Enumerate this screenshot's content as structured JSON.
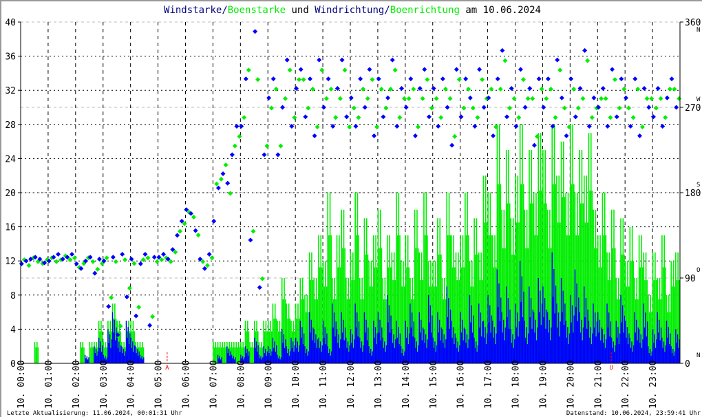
{
  "title": {
    "part1": "Windstarke",
    "sep1": "/",
    "part2": "Boenstarke",
    "mid": " und ",
    "part3": "Windrichtung",
    "sep2": "/",
    "part4": "Boenrichtung",
    "end": " am 10.06.2024"
  },
  "footer": {
    "left": "Letzte Aktualisierung: 11.06.2024, 00:01:31 Uhr",
    "right": "Datenstand: 10.06.2024, 23:59:41 Uhr"
  },
  "colors": {
    "wind": "#0000ff",
    "gust": "#00ee00",
    "title_dark": "#000080",
    "marker": "#ff0000",
    "grid_speed": "#000000",
    "grid_dir": "#bbbbbb"
  },
  "chart_data": {
    "type": "line+scatter",
    "title": "Windstarke/Boenstarke und Windrichtung/Boenrichtung am 10.06.2024",
    "x_tick_labels": [
      "10. 00:00",
      "10. 01:00",
      "10. 02:00",
      "10. 03:00",
      "10. 04:00",
      "10. 05:00",
      "10. 06:00",
      "10. 07:00",
      "10. 08:00",
      "10. 09:00",
      "10. 10:00",
      "10. 11:00",
      "10. 12:00",
      "10. 13:00",
      "10. 14:00",
      "10. 15:00",
      "10. 16:00",
      "10. 17:00",
      "10. 18:00",
      "10. 19:00",
      "10. 20:00",
      "10. 21:00",
      "10. 22:00",
      "10. 23:00"
    ],
    "xlim": [
      "10.06.2024 00:00",
      "11.06.2024 00:00"
    ],
    "y_left": {
      "ticks": [
        0,
        4,
        8,
        12,
        16,
        20,
        24,
        28,
        32,
        36,
        40
      ],
      "ylim": [
        0,
        40
      ]
    },
    "y_right": {
      "ticks": [
        0,
        90,
        180,
        270,
        360
      ],
      "ylim": [
        0,
        360
      ],
      "compass": [
        {
          "deg": 0,
          "label": "N"
        },
        {
          "deg": 90,
          "label": "O"
        },
        {
          "deg": 180,
          "label": "S"
        },
        {
          "deg": 270,
          "label": "W"
        },
        {
          "deg": 360,
          "label": "N"
        }
      ]
    },
    "grid": true,
    "markers": [
      {
        "time": "05:20",
        "label": "A"
      },
      {
        "time": "21:30",
        "label": "U"
      }
    ],
    "sample_interval": "10 min",
    "series": [
      {
        "name": "Windstarke",
        "kind": "line",
        "axis": "left",
        "values": [
          0,
          0,
          0,
          0,
          0,
          0,
          0,
          0,
          0,
          0,
          0,
          0,
          0,
          0,
          1,
          0,
          2,
          3,
          1,
          4,
          6,
          3,
          2,
          5,
          3,
          2,
          1,
          0,
          0,
          0,
          0,
          0,
          0,
          0,
          0,
          0,
          0,
          0,
          0,
          0,
          0,
          0,
          0,
          1,
          0,
          2,
          1,
          0,
          1,
          2,
          0,
          3,
          1,
          2,
          2,
          3,
          1,
          4,
          2,
          3,
          3,
          5,
          2,
          6,
          4,
          3,
          5,
          2,
          7,
          4,
          6,
          3,
          4,
          7,
          3,
          6,
          2,
          5,
          6,
          3,
          8,
          4,
          5,
          2,
          5,
          7,
          3,
          6,
          4,
          8,
          3,
          6,
          4,
          9,
          5,
          3,
          6,
          4,
          8,
          3,
          7,
          5,
          8,
          5,
          11,
          6,
          9,
          4,
          7,
          12,
          5,
          9,
          6,
          10,
          9,
          6,
          13,
          7,
          10,
          5,
          8,
          11,
          6,
          9,
          5,
          7,
          6,
          4,
          7,
          3,
          5,
          8,
          5,
          3,
          6,
          4,
          7,
          2,
          4,
          6,
          3,
          5,
          2,
          4
        ]
      },
      {
        "name": "Boenstarke",
        "kind": "line",
        "axis": "left",
        "values": [
          0,
          0,
          0,
          2.5,
          0,
          0,
          0,
          0,
          0,
          0,
          0,
          0,
          0,
          2.5,
          0,
          2.5,
          2.5,
          5,
          2.5,
          5,
          7,
          5,
          2.5,
          5,
          5,
          2.5,
          2.5,
          0,
          0,
          0,
          0,
          0,
          0,
          0,
          0,
          0,
          0,
          0,
          0,
          0,
          0,
          0,
          2.5,
          2.5,
          2.5,
          2.5,
          2.5,
          2.5,
          2.5,
          5,
          2.5,
          5,
          2.5,
          5,
          5,
          7,
          5,
          10,
          7,
          5,
          7,
          10,
          8,
          13,
          10,
          15,
          12,
          20,
          10,
          15,
          18,
          10,
          13,
          20,
          10,
          17,
          12,
          15,
          18,
          10,
          15,
          13,
          20,
          12,
          15,
          10,
          18,
          13,
          20,
          12,
          12,
          17,
          10,
          20,
          15,
          13,
          15,
          20,
          12,
          17,
          13,
          22,
          20,
          15,
          28,
          18,
          25,
          17,
          22,
          28,
          18,
          25,
          20,
          27,
          25,
          18,
          28,
          22,
          26,
          20,
          28,
          20,
          25,
          22,
          27,
          18,
          15,
          20,
          13,
          18,
          10,
          17,
          12,
          16,
          10,
          15,
          13,
          8,
          13,
          10,
          15,
          8,
          12,
          13
        ]
      },
      {
        "name": "Windrichtung",
        "kind": "scatter",
        "axis": "right",
        "values": [
          105,
          108,
          110,
          112,
          110,
          106,
          108,
          112,
          115,
          110,
          112,
          115,
          105,
          100,
          108,
          112,
          95,
          110,
          108,
          60,
          112,
          30,
          115,
          70,
          110,
          50,
          105,
          115,
          40,
          112,
          112,
          115,
          110,
          120,
          135,
          150,
          162,
          158,
          140,
          110,
          100,
          115,
          150,
          185,
          200,
          190,
          220,
          250,
          250,
          300,
          130,
          350,
          80,
          220,
          280,
          300,
          220,
          270,
          320,
          250,
          290,
          310,
          260,
          300,
          240,
          320,
          270,
          300,
          250,
          290,
          320,
          260,
          280,
          250,
          300,
          270,
          310,
          240,
          300,
          260,
          280,
          320,
          250,
          290,
          270,
          300,
          240,
          290,
          310,
          260,
          290,
          250,
          300,
          270,
          230,
          310,
          260,
          300,
          280,
          250,
          310,
          270,
          280,
          240,
          300,
          330,
          260,
          290,
          250,
          310,
          270,
          290,
          230,
          300,
          270,
          300,
          250,
          320,
          280,
          240,
          300,
          260,
          290,
          330,
          250,
          280,
          270,
          290,
          250,
          310,
          260,
          300,
          280,
          250,
          300,
          240,
          290,
          270,
          260,
          290,
          250,
          280,
          300,
          270
        ]
      },
      {
        "name": "Boenrichtung",
        "kind": "scatter",
        "axis": "right",
        "values": [
          110,
          104,
          112,
          108,
          106,
          110,
          112,
          108,
          110,
          114,
          110,
          112,
          102,
          106,
          112,
          108,
          100,
          106,
          112,
          70,
          108,
          40,
          110,
          80,
          106,
          60,
          110,
          112,
          50,
          108,
          110,
          112,
          108,
          118,
          140,
          148,
          160,
          155,
          136,
          108,
          104,
          112,
          190,
          195,
          210,
          180,
          230,
          240,
          260,
          310,
          140,
          300,
          90,
          230,
          270,
          290,
          230,
          280,
          310,
          260,
          300,
          300,
          270,
          290,
          250,
          310,
          280,
          290,
          260,
          280,
          310,
          250,
          270,
          260,
          290,
          280,
          300,
          250,
          290,
          270,
          290,
          310,
          260,
          280,
          280,
          290,
          250,
          280,
          300,
          270,
          280,
          260,
          290,
          280,
          240,
          300,
          270,
          290,
          270,
          260,
          300,
          280,
          290,
          250,
          290,
          320,
          270,
          280,
          260,
          300,
          280,
          280,
          240,
          290,
          280,
          290,
          260,
          310,
          270,
          250,
          290,
          270,
          280,
          320,
          260,
          270,
          280,
          280,
          260,
          300,
          270,
          290,
          270,
          260,
          290,
          250,
          280,
          280,
          270,
          280,
          260,
          290,
          290,
          280
        ]
      }
    ]
  }
}
